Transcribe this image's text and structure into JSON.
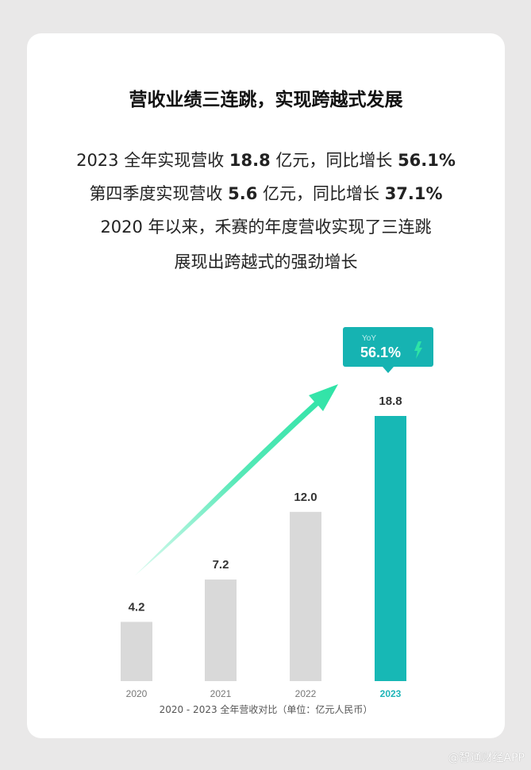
{
  "headline": "营收业绩三连跳，实现跨越式发展",
  "lines": [
    {
      "pre": "2023 全年实现营收 ",
      "b1": "18.8",
      "mid": " 亿元，同比增长 ",
      "b2": "56.1%"
    },
    {
      "pre": "第四季度实现营收 ",
      "b1": "5.6",
      "mid": " 亿元，同比增长 ",
      "b2": "37.1%"
    }
  ],
  "line3": "2020 年以来，禾赛的年度营收实现了三连跳",
  "line4": "展现出跨越式的强劲增长",
  "watermark": "@智通财经APP",
  "chart_data": {
    "type": "bar",
    "categories": [
      "2020",
      "2021",
      "2022",
      "2023"
    ],
    "values": [
      4.2,
      7.2,
      12.0,
      18.8
    ],
    "value_labels": [
      "4.2",
      "7.2",
      "12.0",
      "18.8"
    ],
    "caption": "2020 - 2023 全年营收对比（单位：亿元人民币）",
    "callout": {
      "label": "YoY",
      "value": "56.1%",
      "year": "2023"
    },
    "colors": {
      "bar": "#d9d9d9",
      "highlight": "#17b8b5",
      "arrow": "#2ee3a6",
      "callout": "#16b3b2",
      "highlight_text": "#1fb5b8"
    },
    "ylim": [
      0,
      18.8
    ]
  }
}
